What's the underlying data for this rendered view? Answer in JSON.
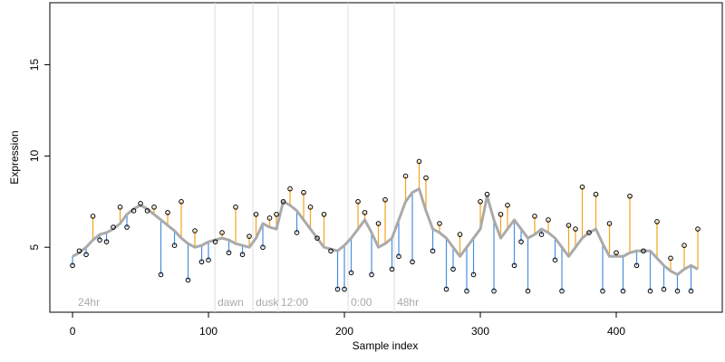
{
  "chart_data": {
    "type": "scatter",
    "x_label": "Sample index",
    "y_label": "Expression",
    "xlim": [
      -16.7,
      478
    ],
    "ylim": [
      1.44,
      18.4
    ],
    "xticks": [
      0,
      100,
      200,
      300,
      400
    ],
    "yticks": [
      5,
      10,
      15
    ],
    "point_color": "#000000",
    "fit_color": "#aaaaaa",
    "above_color": "#f5a21c",
    "below_color": "#4a8fe0",
    "annotation_color": "#aaaaaa",
    "annotation_line_color": "#dddddd",
    "annotations": [
      {
        "x": 2,
        "text": "24hr",
        "line": false
      },
      {
        "x": 104.7,
        "text": "dawn",
        "line": true
      },
      {
        "x": 132.7,
        "text": "dusk",
        "line": true
      },
      {
        "x": 151.3,
        "text": "12:00",
        "line": true
      },
      {
        "x": 202.7,
        "text": "0:00",
        "line": true
      },
      {
        "x": 236.7,
        "text": "48hr",
        "line": true
      }
    ],
    "x": [
      0,
      5,
      10,
      15,
      20,
      25,
      30,
      35,
      40,
      45,
      50,
      55,
      60,
      65,
      70,
      75,
      80,
      85,
      90,
      95,
      100,
      105,
      110,
      115,
      120,
      125,
      130,
      135,
      140,
      145,
      150,
      155,
      160,
      165,
      170,
      175,
      180,
      185,
      190,
      195,
      200,
      205,
      210,
      215,
      220,
      225,
      230,
      235,
      240,
      245,
      250,
      255,
      260,
      265,
      270,
      275,
      280,
      285,
      290,
      295,
      300,
      305,
      310,
      315,
      320,
      325,
      330,
      335,
      340,
      345,
      350,
      355,
      360,
      365,
      370,
      375,
      380,
      385,
      390,
      395,
      400,
      405,
      410,
      415,
      420,
      425,
      430,
      435,
      440,
      445,
      450,
      455,
      460
    ],
    "values": [
      4.0,
      4.8,
      4.6,
      6.7,
      5.4,
      5.3,
      6.1,
      7.2,
      6.1,
      7.0,
      7.4,
      7.0,
      7.2,
      3.5,
      6.9,
      5.1,
      7.5,
      3.2,
      5.9,
      4.2,
      4.3,
      5.3,
      5.8,
      4.7,
      7.2,
      4.6,
      5.6,
      6.8,
      5.0,
      6.6,
      6.8,
      7.5,
      8.2,
      5.8,
      8.0,
      7.2,
      5.5,
      6.8,
      4.8,
      2.7,
      2.7,
      3.6,
      7.5,
      6.9,
      3.5,
      6.3,
      7.6,
      3.8,
      4.5,
      8.9,
      4.2,
      9.7,
      8.8,
      4.8,
      6.3,
      2.7,
      3.8,
      5.7,
      2.6,
      3.5,
      7.5,
      7.9,
      2.6,
      6.8,
      7.3,
      4.0,
      5.3,
      2.6,
      6.7,
      5.7,
      6.5,
      4.3,
      2.6,
      6.2,
      6.0,
      8.3,
      5.8,
      7.9,
      2.6,
      6.3,
      4.7,
      2.6,
      7.8,
      4.0,
      4.8,
      2.6,
      6.4,
      2.7,
      4.4,
      2.6,
      5.1,
      2.6,
      6.0
    ],
    "fit": [
      4.5,
      4.7,
      5.0,
      5.4,
      5.7,
      5.8,
      6.0,
      6.3,
      6.8,
      7.1,
      7.3,
      7.1,
      6.8,
      6.5,
      6.2,
      5.9,
      5.5,
      5.2,
      5.0,
      5.1,
      5.3,
      5.4,
      5.5,
      5.4,
      5.2,
      5.1,
      5.0,
      5.5,
      6.3,
      6.1,
      6.0,
      7.5,
      7.3,
      7.0,
      6.5,
      6.0,
      5.5,
      5.0,
      4.9,
      4.8,
      5.1,
      5.5,
      6.0,
      6.5,
      5.8,
      5.0,
      5.2,
      5.5,
      6.5,
      7.5,
      8.0,
      8.2,
      7.0,
      6.0,
      5.8,
      5.5,
      5.0,
      4.5,
      5.0,
      5.5,
      6.0,
      7.8,
      6.5,
      5.5,
      6.0,
      6.5,
      6.0,
      5.5,
      5.7,
      6.0,
      5.8,
      5.5,
      5.0,
      4.5,
      5.0,
      5.5,
      5.8,
      6.0,
      5.2,
      4.5,
      4.5,
      4.5,
      4.7,
      4.8,
      4.8,
      4.8,
      4.4,
      4.0,
      3.7,
      3.5,
      3.8,
      4.0,
      3.8
    ]
  }
}
